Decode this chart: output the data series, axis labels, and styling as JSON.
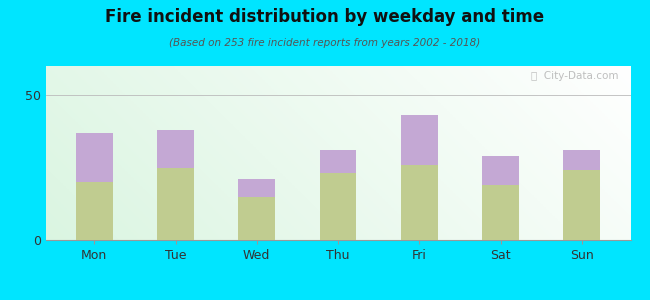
{
  "title": "Fire incident distribution by weekday and time",
  "subtitle": "(Based on 253 fire incident reports from years 2002 - 2018)",
  "days": [
    "Mon",
    "Tue",
    "Wed",
    "Thu",
    "Fri",
    "Sat",
    "Sun"
  ],
  "pm_values": [
    20,
    25,
    15,
    23,
    26,
    19,
    24
  ],
  "am_values": [
    17,
    13,
    6,
    8,
    17,
    10,
    7
  ],
  "am_color": "#c4a8d4",
  "pm_color": "#c0cc90",
  "background_outer": "#00e5ff",
  "ylim": [
    0,
    60
  ],
  "yticks": [
    0,
    50
  ],
  "bar_width": 0.45,
  "watermark": "ⓘ  City-Data.com"
}
